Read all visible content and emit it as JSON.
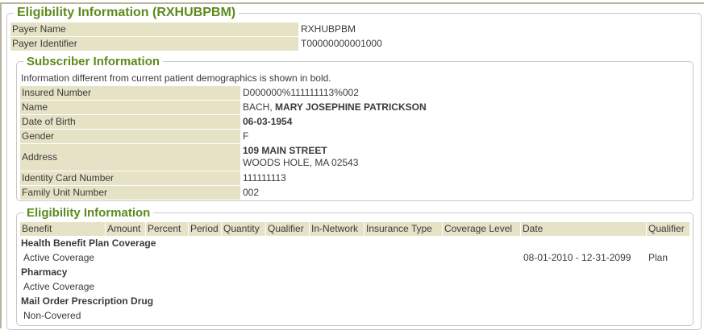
{
  "eligibility_main": {
    "title": "Eligibility Information (RXHUBPBM)",
    "payer_name_label": "Payer Name",
    "payer_name": "RXHUBPBM",
    "payer_id_label": "Payer Identifier",
    "payer_id": "T00000000001000"
  },
  "subscriber": {
    "title": "Subscriber Information",
    "note": "Information different from current patient demographics is shown in bold.",
    "insured_number_label": "Insured Number",
    "insured_number": "D000000%111111113%002",
    "name_label": "Name",
    "last_name": "BACH,",
    "first_names": "MARY JOSEPHINE PATRICKSON",
    "dob_label": "Date of Birth",
    "dob": "06-03-1954",
    "gender_label": "Gender",
    "gender": "F",
    "address_label": "Address",
    "address_line1": "109 MAIN STREET",
    "address_line2": "WOODS HOLE, MA 02543",
    "id_card_label": "Identity Card Number",
    "id_card": "111111113",
    "family_unit_label": "Family Unit Number",
    "family_unit": "002"
  },
  "eligibility": {
    "title": "Eligibility Information",
    "columns": [
      "Benefit",
      "Amount",
      "Percent",
      "Period",
      "Quantity",
      "Qualifier",
      "In-Network",
      "Insurance Type",
      "Coverage Level",
      "Date",
      "Qualifier"
    ],
    "groups": [
      {
        "benefit": "Health Benefit Plan Coverage",
        "status": "Active Coverage",
        "date": "08-01-2010 - 12-31-2099",
        "qualifier": "Plan"
      },
      {
        "benefit": "Pharmacy",
        "status": "Active Coverage"
      },
      {
        "benefit": "Mail Order Prescription Drug",
        "status": "Non-Covered"
      }
    ]
  }
}
